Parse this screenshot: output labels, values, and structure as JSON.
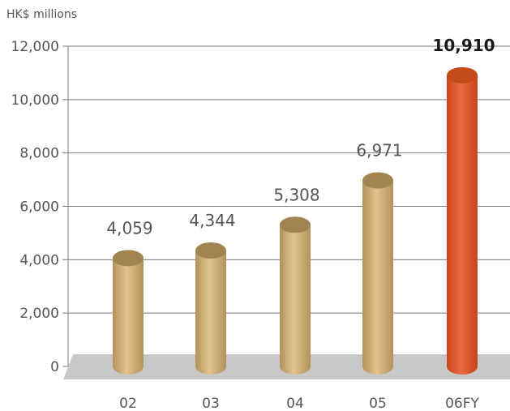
{
  "chart_data": {
    "type": "bar",
    "unit_label": "HK$ millions",
    "categories": [
      "02",
      "03",
      "04",
      "05",
      "06FY"
    ],
    "values": [
      4059,
      4344,
      5308,
      6971,
      10910
    ],
    "data_labels": [
      "4,059",
      "4,344",
      "5,308",
      "6,971",
      "10,910"
    ],
    "highlight_index": 4,
    "ylim": [
      0,
      12000
    ],
    "yticks": [
      0,
      2000,
      4000,
      6000,
      8000,
      10000,
      12000
    ],
    "ytick_labels": [
      "0",
      "2,000",
      "4,000",
      "6,000",
      "8,000",
      "10,000",
      "12,000"
    ],
    "grid": true,
    "legend": "none",
    "colors": {
      "bar": "#e2c48f",
      "bar_dark": "#b3915a",
      "bar_top": "#a08550",
      "highlight": "#ec6a3f",
      "highlight_dark": "#c6451f",
      "highlight_top": "#c24b18",
      "floor": "#c8c8c8",
      "grid": "#7a7a7a"
    }
  }
}
